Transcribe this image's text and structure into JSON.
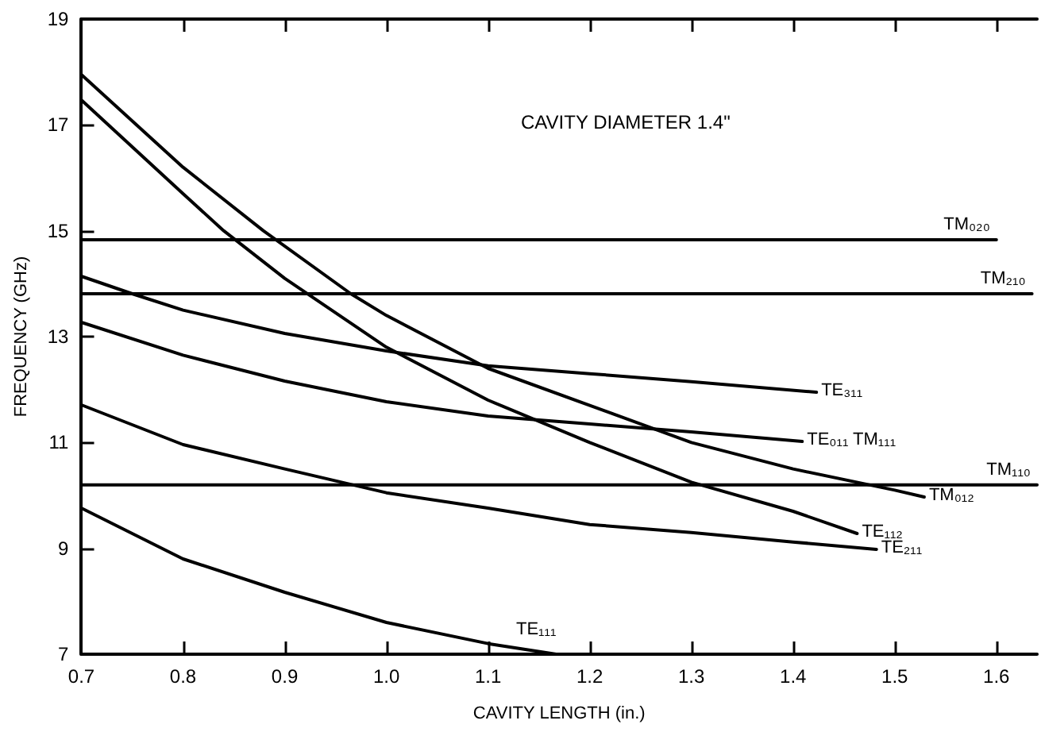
{
  "chart_data": {
    "type": "line",
    "xlabel": "CAVITY LENGTH (in.)",
    "ylabel": "FREQUENCY (GHz)",
    "annotations": [
      "CAVITY DIAMETER 1.4\""
    ],
    "xlim": [
      0.7,
      1.64
    ],
    "xticks": [
      {
        "value": 0.7,
        "label": "0.7"
      },
      {
        "value": 0.8,
        "label": "0.8"
      },
      {
        "value": 0.9,
        "label": "0.9"
      },
      {
        "value": 1.0,
        "label": "1.0"
      },
      {
        "value": 1.1,
        "label": "1.1"
      },
      {
        "value": 1.2,
        "label": "1.2"
      },
      {
        "value": 1.3,
        "label": "1.3"
      },
      {
        "value": 1.4,
        "label": "1.4"
      },
      {
        "value": 1.5,
        "label": "1.5"
      },
      {
        "value": 1.6,
        "label": "1.6"
      }
    ],
    "ylim": [
      7,
      19
    ],
    "yticks": [
      7,
      9,
      11,
      13,
      15,
      17,
      19
    ],
    "grid": false,
    "legend": false,
    "marker": "none",
    "line_style": "solid",
    "series": [
      {
        "name": "TM₀₂₀",
        "color": "#000000",
        "x": [
          0.7,
          1.6
        ],
        "values": [
          14.83,
          14.83
        ]
      },
      {
        "name": "TM₂₁₀",
        "color": "#000000",
        "x": [
          0.7,
          1.635
        ],
        "values": [
          13.81,
          13.81
        ]
      },
      {
        "name": "TM₁₁₀",
        "color": "#000000",
        "x": [
          0.7,
          1.64
        ],
        "values": [
          10.2,
          10.2
        ]
      },
      {
        "name": "TM₀₁₂",
        "color": "#000000",
        "x": [
          0.7,
          0.8,
          0.879,
          0.965,
          1.0,
          1.1,
          1.2,
          1.3,
          1.4,
          1.5,
          1.529
        ],
        "values": [
          17.95,
          16.2,
          15.0,
          13.81,
          13.4,
          12.4,
          11.7,
          11.0,
          10.5,
          10.1,
          9.97
        ]
      },
      {
        "name": "TE₁₁₂",
        "color": "#000000",
        "x": [
          0.7,
          0.8,
          0.84,
          0.9,
          1.0,
          1.1,
          1.2,
          1.3,
          1.4,
          1.463
        ],
        "values": [
          17.47,
          15.7,
          15.0,
          14.1,
          12.8,
          11.8,
          11.0,
          10.25,
          9.7,
          9.28
        ]
      },
      {
        "name": "TE₃₁₁",
        "color": "#000000",
        "x": [
          0.7,
          0.75,
          0.8,
          0.9,
          1.0,
          1.1,
          1.2,
          1.3,
          1.423
        ],
        "values": [
          14.14,
          13.81,
          13.5,
          13.06,
          12.73,
          12.45,
          12.3,
          12.15,
          11.95
        ]
      },
      {
        "name": "TE₀₁₁ TM₁₁₁",
        "color": "#000000",
        "x": [
          0.7,
          0.8,
          0.9,
          1.0,
          1.1,
          1.2,
          1.3,
          1.409
        ],
        "values": [
          13.27,
          12.65,
          12.16,
          11.77,
          11.5,
          11.35,
          11.2,
          11.02
        ]
      },
      {
        "name": "TE₂₁₁",
        "color": "#000000",
        "x": [
          0.7,
          0.8,
          0.9,
          1.0,
          1.1,
          1.2,
          1.3,
          1.4,
          1.482
        ],
        "values": [
          11.71,
          10.96,
          10.5,
          10.05,
          9.76,
          9.45,
          9.3,
          9.12,
          8.98
        ]
      },
      {
        "name": "TE₁₁₁",
        "color": "#000000",
        "x": [
          0.7,
          0.8,
          0.9,
          1.0,
          1.1,
          1.167
        ],
        "values": [
          9.76,
          8.8,
          8.17,
          7.6,
          7.2,
          7.0
        ]
      }
    ]
  }
}
